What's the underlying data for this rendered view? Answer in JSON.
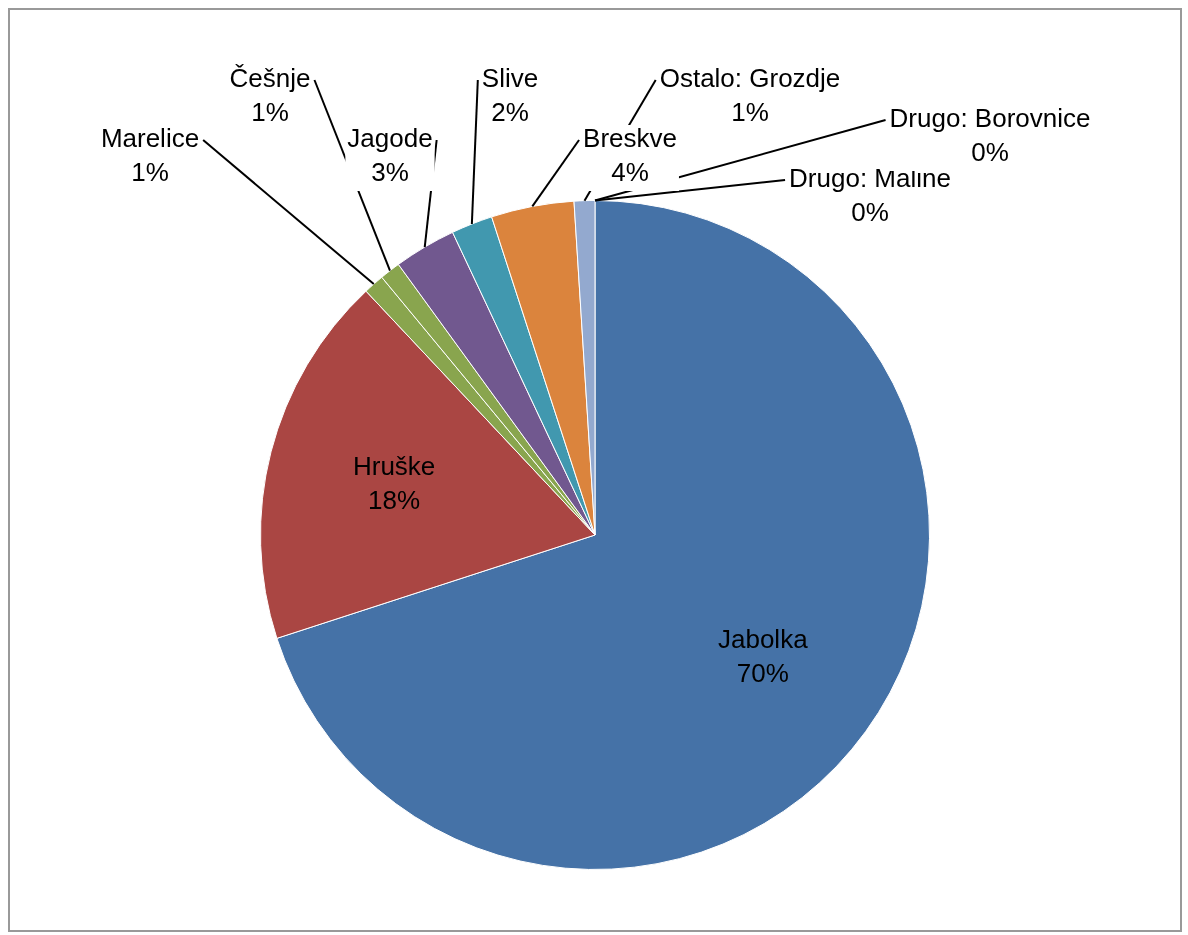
{
  "chart_data": {
    "type": "pie",
    "categories": [
      "Jabolka",
      "Hruške",
      "Marelice",
      "Češnje",
      "Jagode",
      "Slive",
      "Breskve",
      "Ostalo: Grozdje",
      "Drugo: Maline",
      "Drugo: Borovnice"
    ],
    "values": [
      70,
      18,
      1,
      1,
      3,
      2,
      4,
      1,
      0,
      0
    ],
    "value_labels": [
      "70%",
      "18%",
      "1%",
      "1%",
      "3%",
      "2%",
      "4%",
      "1%",
      "0%",
      "0%"
    ],
    "colors": [
      "#4572a7",
      "#aa4643",
      "#89a54e",
      "#89a54e",
      "#71588f",
      "#4198af",
      "#db843d",
      "#93a9cf",
      "#d19392",
      "#b9cd96"
    ],
    "legend": false
  }
}
